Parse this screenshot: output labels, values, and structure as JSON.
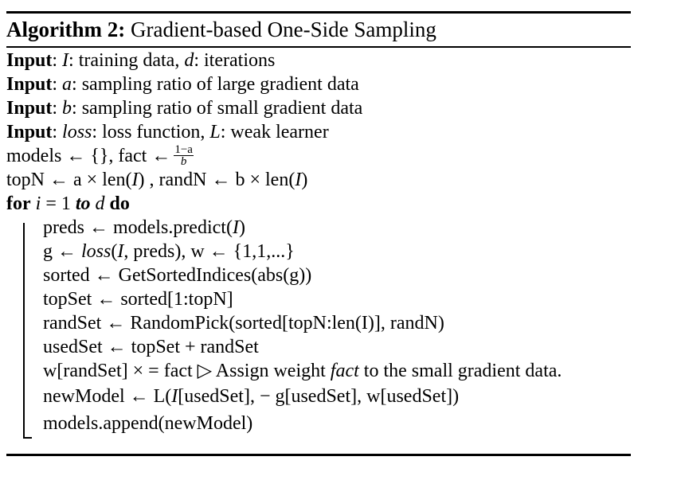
{
  "algorithm": {
    "title_label": "Algorithm 2:",
    "title_text": "Gradient-based One-Side Sampling",
    "inputs": {
      "keyword": "Input",
      "in1": {
        "v1": "I",
        "t1": ": training data, ",
        "v2": "d",
        "t2": ": iterations"
      },
      "in2": {
        "v1": "a",
        "t1": ": sampling ratio of large gradient data"
      },
      "in3": {
        "v1": "b",
        "t1": ": sampling ratio of small gradient data"
      },
      "in4": {
        "v1": "loss",
        "t1": ": loss function, ",
        "v2": "L",
        "t2": ": weak learner"
      }
    },
    "init1": {
      "t1": "models ← {}, fact ←",
      "frac_num": "1−a",
      "frac_den": "b"
    },
    "init2": {
      "t1": "topN ← a × len(",
      "v1": "I",
      "t2": ") , randN ← b × len(",
      "v2": "I",
      "t3": ")"
    },
    "loop": {
      "kw_for": "for",
      "v_i": "i",
      "eq": " = 1 ",
      "kw_to": "to",
      "v_d": "d",
      "kw_do": "do"
    },
    "body": {
      "s1": {
        "t1": "preds ← models.predict(",
        "v1": "I",
        "t2": ")"
      },
      "s2": {
        "t1": "g ← ",
        "v1": "loss",
        "t2": "(",
        "v2": "I",
        "t3": ", preds), w ← {1,1,...}"
      },
      "s3": {
        "t1": "sorted ← GetSortedIndices(abs(g))"
      },
      "s4": {
        "t1": "topSet ← sorted[1:topN]"
      },
      "s5": {
        "t1": "randSet ← RandomPick(sorted[topN:len(I)], randN)"
      },
      "s6": {
        "t1": "usedSet ← topSet + randSet"
      },
      "s7": {
        "t1": "w[randSet] × = fact ▷ Assign weight ",
        "v1": "fact",
        "t2": " to the small gradient data."
      },
      "s8": {
        "t1": "newModel ← L(",
        "v1": "I",
        "t2": "[usedSet], − g[usedSet], w[usedSet])"
      },
      "s9": {
        "t1": "models.append(newModel)"
      }
    }
  }
}
